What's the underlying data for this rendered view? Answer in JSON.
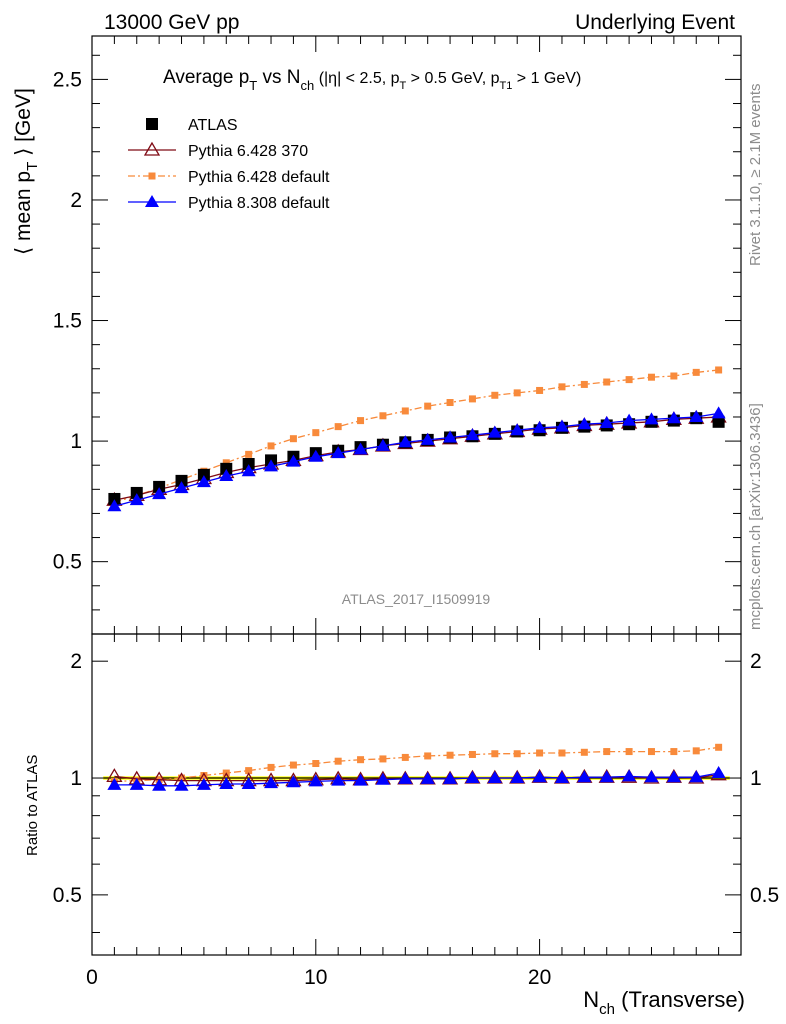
{
  "header": {
    "left": "13000 GeV pp",
    "right": "Underlying Event"
  },
  "side": {
    "rivet": "Rivet 3.1.10, ≥ 2.1M events",
    "mcplots": "mcplots.cern.ch [arXiv:1306.3436]"
  },
  "analysis_tag": "ATLAS_2017_I1509919",
  "main_ylabel": "⟨ mean pT ⟩ [GeV]",
  "ratio_ylabel": "Ratio to ATLAS",
  "xlabel": "Nch (Transverse)",
  "colors": {
    "atlas": "#000000",
    "py6_370": "#7f0a14",
    "py6_default": "#f88a3b",
    "py8": "#0000ff",
    "band": "#ffff00"
  },
  "chart_data": [
    {
      "type": "scatter",
      "title": "Average pT vs Nch (|η| < 2.5, pT > 0.5 GeV, pT1 > 1 GeV)",
      "xlabel": "Nch (Transverse)",
      "ylabel": "⟨ mean pT ⟩ [GeV]",
      "xlim": [
        0,
        29
      ],
      "ylim": [
        0.2,
        2.68
      ],
      "yticks": [
        0.5,
        1,
        1.5,
        2,
        2.5
      ],
      "legend_position": "top-left",
      "x": [
        1,
        2,
        3,
        4,
        5,
        6,
        7,
        8,
        9,
        10,
        11,
        12,
        13,
        14,
        15,
        16,
        17,
        18,
        19,
        20,
        21,
        22,
        23,
        24,
        25,
        26,
        27,
        28
      ],
      "series": [
        {
          "name": "ATLAS",
          "key": "atlas",
          "marker": "square",
          "values": [
            0.76,
            0.785,
            0.81,
            0.835,
            0.86,
            0.885,
            0.905,
            0.92,
            0.935,
            0.95,
            0.96,
            0.975,
            0.985,
            0.995,
            1.005,
            1.015,
            1.02,
            1.03,
            1.04,
            1.045,
            1.055,
            1.06,
            1.065,
            1.07,
            1.08,
            1.085,
            1.095,
            1.08
          ]
        },
        {
          "name": "Pythia 6.428 370",
          "key": "py6_370",
          "marker": "open-triangle",
          "values": [
            0.755,
            0.775,
            0.8,
            0.82,
            0.845,
            0.87,
            0.89,
            0.905,
            0.92,
            0.94,
            0.955,
            0.965,
            0.98,
            0.99,
            1.0,
            1.01,
            1.02,
            1.03,
            1.04,
            1.05,
            1.055,
            1.065,
            1.07,
            1.075,
            1.08,
            1.09,
            1.095,
            1.1
          ]
        },
        {
          "name": "Pythia 6.428 default",
          "key": "py6_default",
          "marker": "small-square",
          "values": [
            0.745,
            0.775,
            0.805,
            0.84,
            0.875,
            0.91,
            0.945,
            0.98,
            1.01,
            1.035,
            1.06,
            1.085,
            1.105,
            1.125,
            1.145,
            1.16,
            1.175,
            1.19,
            1.2,
            1.21,
            1.225,
            1.235,
            1.245,
            1.255,
            1.265,
            1.27,
            1.285,
            1.295
          ]
        },
        {
          "name": "Pythia 8.308 default",
          "key": "py8",
          "marker": "triangle",
          "values": [
            0.73,
            0.755,
            0.78,
            0.805,
            0.83,
            0.855,
            0.875,
            0.895,
            0.915,
            0.935,
            0.95,
            0.965,
            0.98,
            0.995,
            1.005,
            1.015,
            1.025,
            1.035,
            1.045,
            1.055,
            1.06,
            1.07,
            1.075,
            1.085,
            1.09,
            1.095,
            1.1,
            1.115
          ]
        }
      ]
    },
    {
      "type": "line",
      "ylabel": "Ratio to ATLAS",
      "xlabel": "Nch (Transverse)",
      "xlim": [
        0,
        29
      ],
      "ylim": [
        0.35,
        2.35
      ],
      "yticks": [
        0.5,
        1,
        2
      ],
      "xticks": [
        0,
        10,
        20
      ],
      "x": [
        1,
        2,
        3,
        4,
        5,
        6,
        7,
        8,
        9,
        10,
        11,
        12,
        13,
        14,
        15,
        16,
        17,
        18,
        19,
        20,
        21,
        22,
        23,
        24,
        25,
        26,
        27,
        28
      ],
      "series": [
        {
          "name": "Pythia 6.428 370",
          "key": "py6_370",
          "values": [
            1.01,
            0.995,
            0.99,
            0.985,
            0.985,
            0.985,
            0.985,
            0.985,
            0.985,
            0.99,
            0.995,
            0.99,
            0.995,
            0.995,
            0.995,
            0.995,
            1.0,
            1.0,
            1.0,
            1.005,
            1.0,
            1.005,
            1.005,
            1.005,
            1.0,
            1.005,
            1.0,
            1.02
          ]
        },
        {
          "name": "Pythia 6.428 default",
          "key": "py6_default",
          "values": [
            0.98,
            0.985,
            0.99,
            1.0,
            1.015,
            1.03,
            1.045,
            1.065,
            1.08,
            1.09,
            1.105,
            1.115,
            1.12,
            1.13,
            1.14,
            1.145,
            1.15,
            1.155,
            1.155,
            1.16,
            1.16,
            1.165,
            1.17,
            1.17,
            1.17,
            1.17,
            1.175,
            1.2
          ]
        },
        {
          "name": "Pythia 8.308 default",
          "key": "py8",
          "values": [
            0.96,
            0.96,
            0.955,
            0.955,
            0.96,
            0.965,
            0.965,
            0.97,
            0.975,
            0.98,
            0.985,
            0.985,
            0.99,
            0.995,
            0.995,
            0.995,
            1.0,
            1.0,
            1.0,
            1.005,
            1.0,
            1.005,
            1.005,
            1.01,
            1.005,
            1.005,
            1.005,
            1.03
          ]
        }
      ]
    }
  ]
}
